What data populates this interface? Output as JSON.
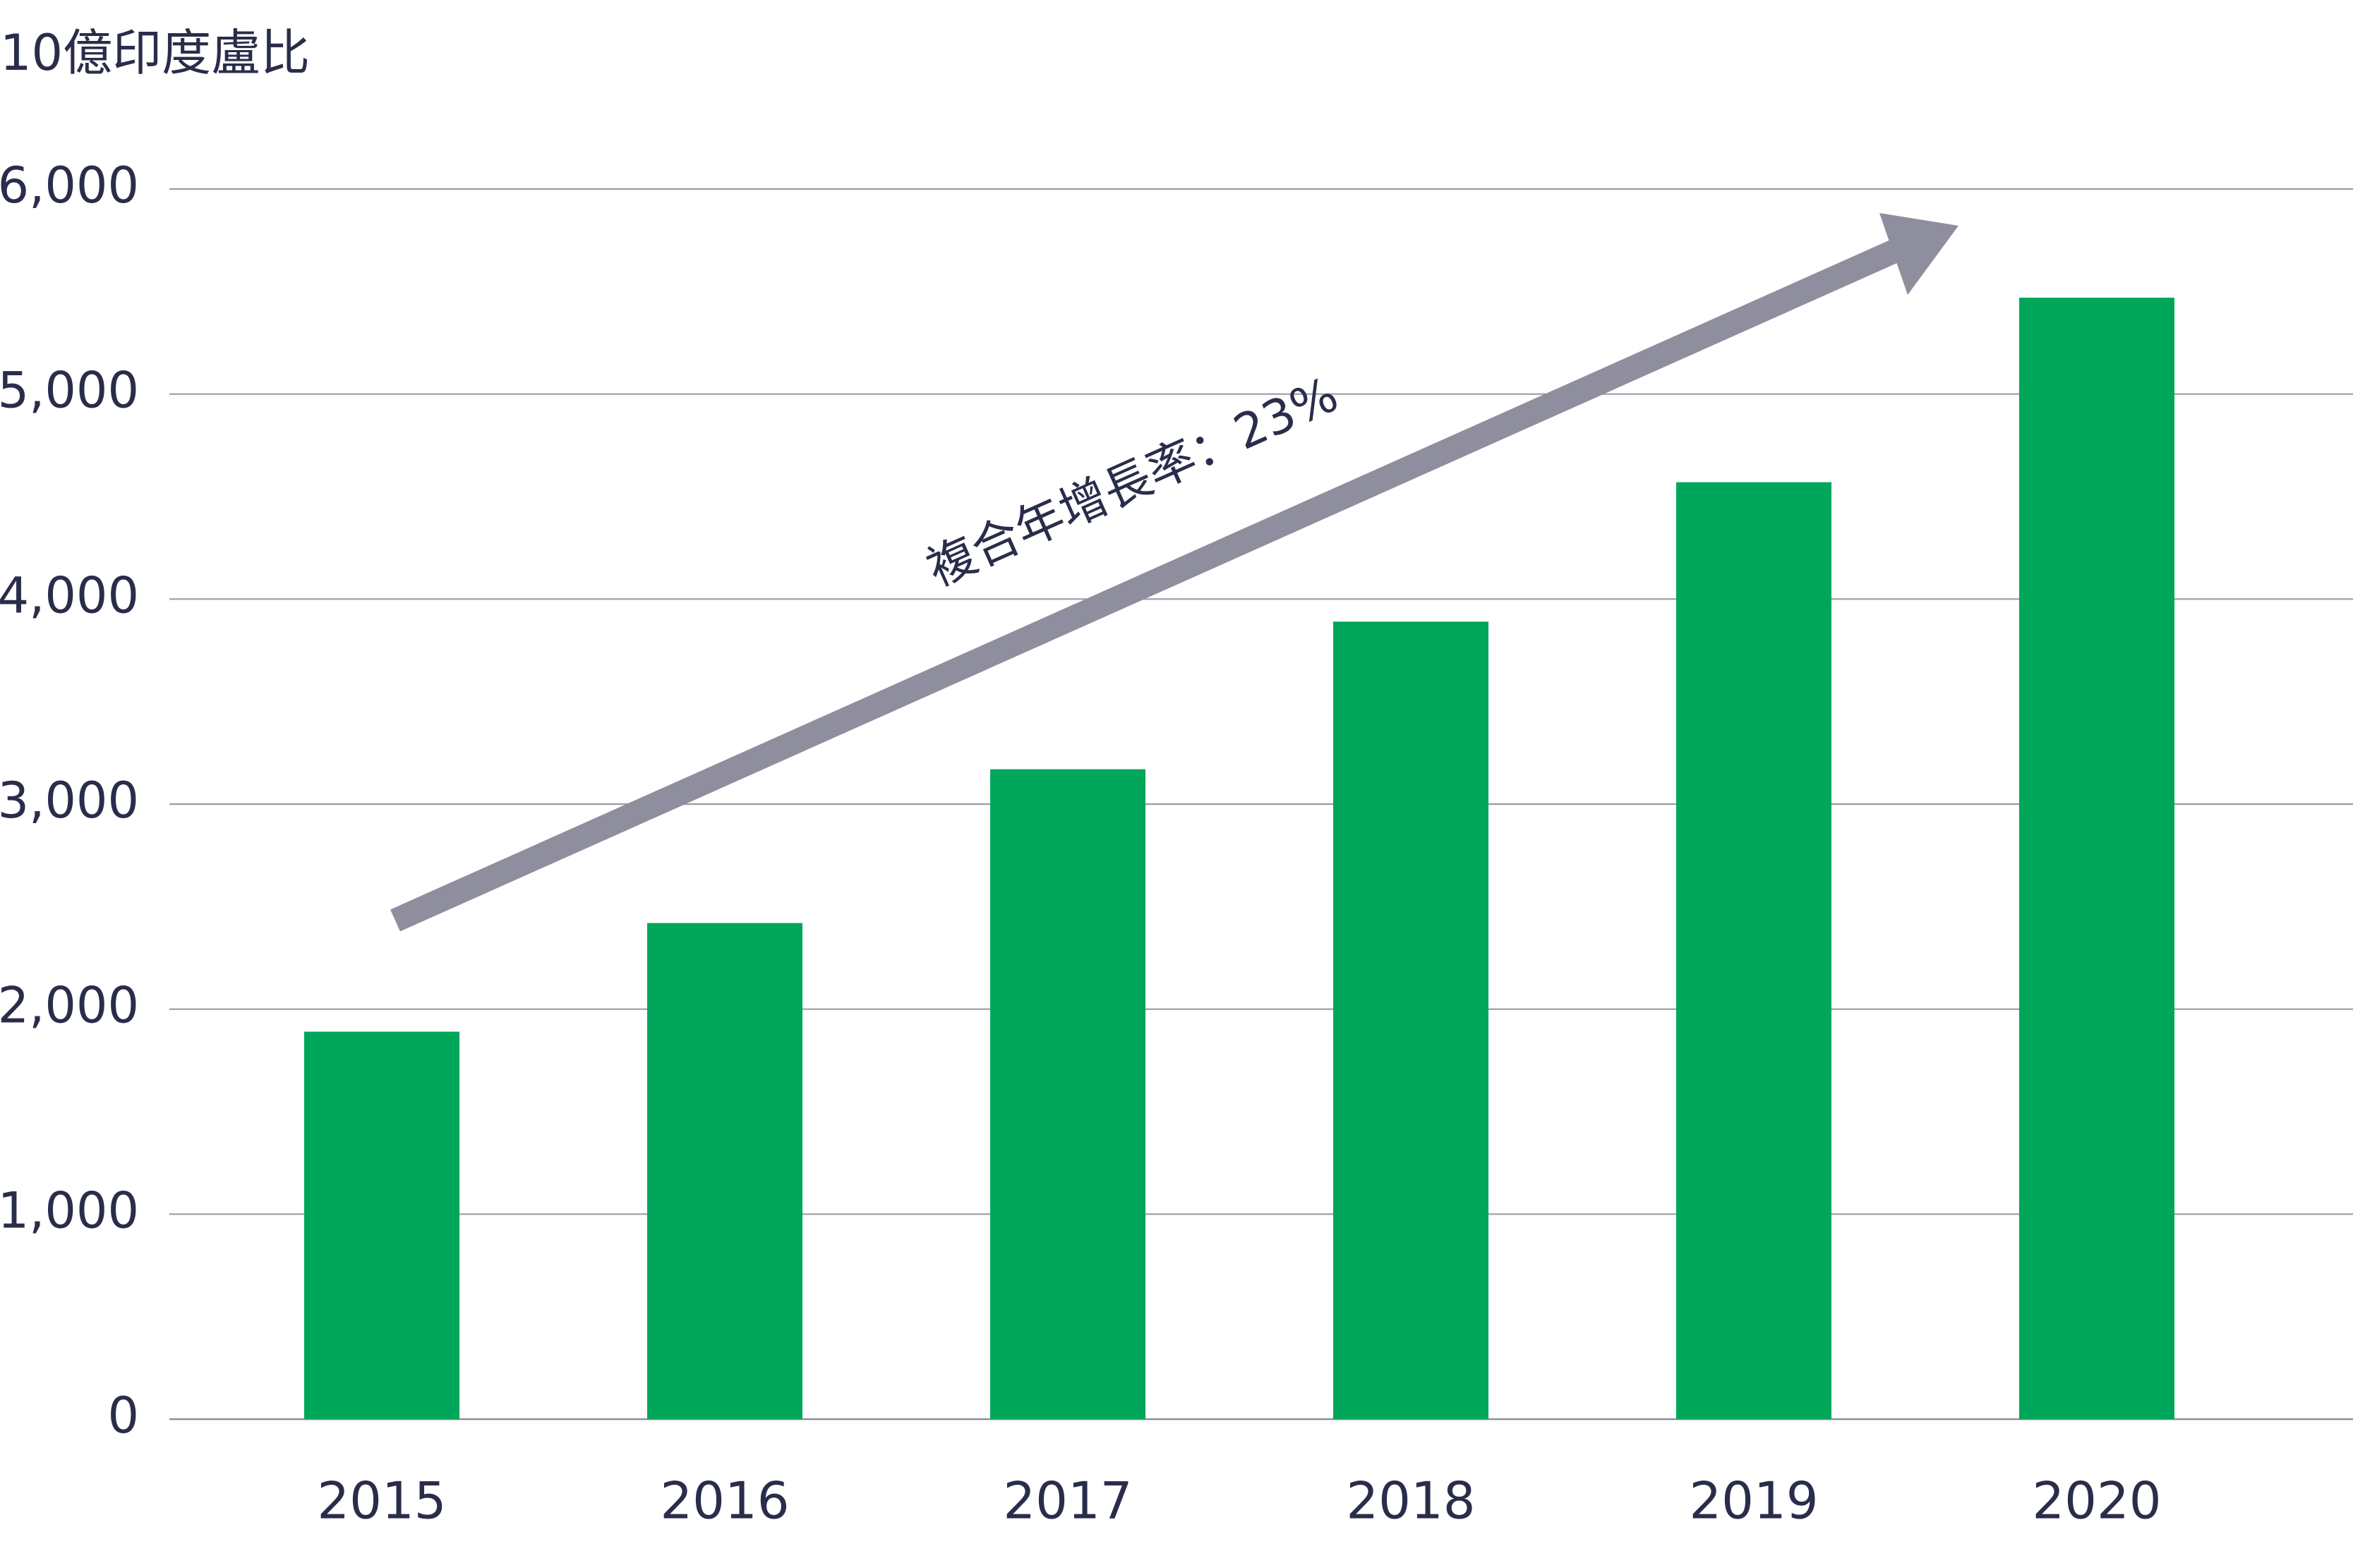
{
  "chart_data": {
    "type": "bar",
    "unit_label": "10億印度盧比",
    "categories": [
      "2015",
      "2016",
      "2017",
      "2018",
      "2019",
      "2020"
    ],
    "values": [
      1890,
      2420,
      3170,
      3890,
      4570,
      5470
    ],
    "ylim": [
      0,
      6000
    ],
    "yticks": [
      0,
      1000,
      2000,
      3000,
      4000,
      5000,
      6000
    ],
    "ytick_labels": [
      "0",
      "1,000",
      "2,000",
      "3,000",
      "4,000",
      "5,000",
      "6,000"
    ],
    "grid": true,
    "legend": "none",
    "annotation": {
      "text": "複合年增長率：23%",
      "shape": "arrow"
    },
    "colors": {
      "bar": "#00a65a",
      "arrow": "#8e8e9e",
      "grid": "#9b9ba6",
      "text": "#2a2d4a"
    }
  }
}
